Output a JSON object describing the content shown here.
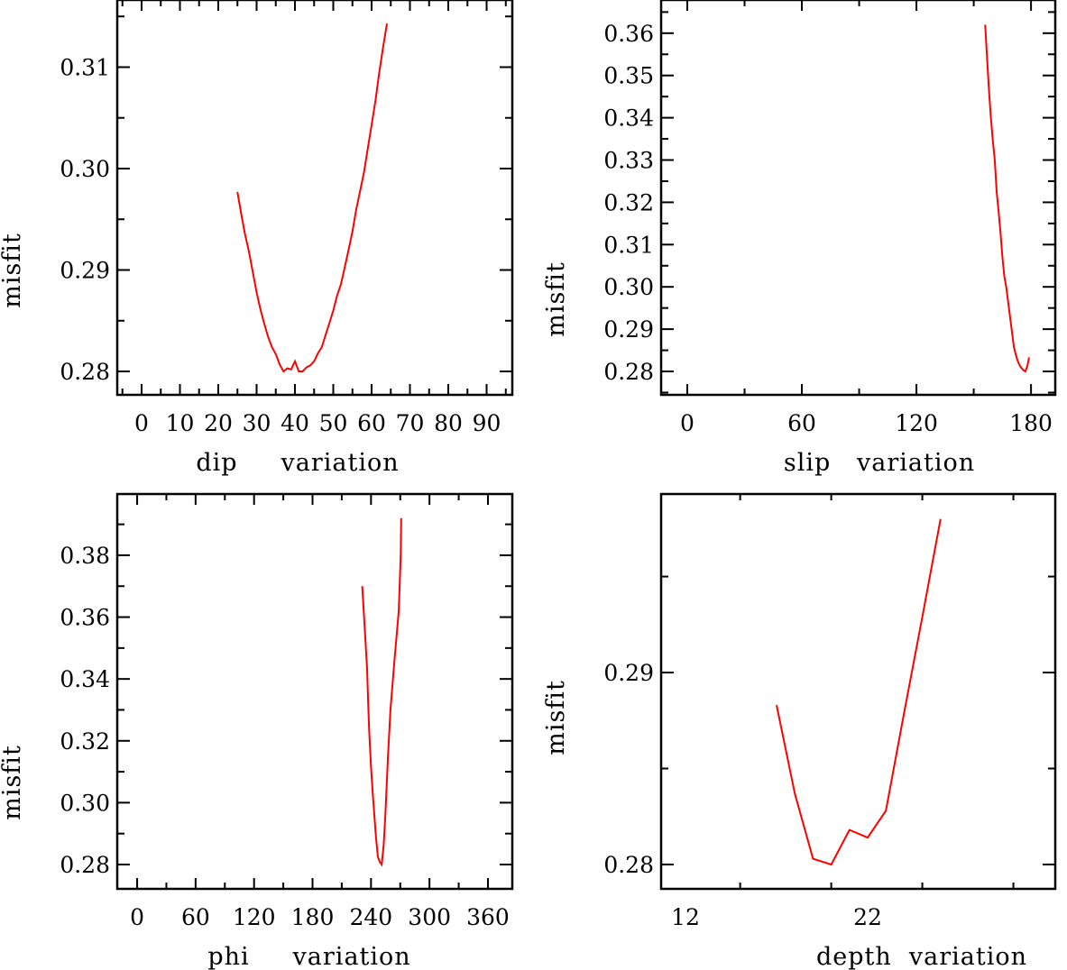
{
  "chart_data": [
    {
      "type": "line",
      "title": "",
      "xlabel": "dip     variation",
      "ylabel": "misfit",
      "xlim": [
        -6.35,
        96.7
      ],
      "ylim": [
        0.27769,
        0.31662
      ],
      "xticks_major": [
        0,
        10,
        20,
        30,
        40,
        50,
        60,
        70,
        80,
        90
      ],
      "xtick_labels": [
        "0",
        "10",
        "20",
        "30",
        "40",
        "50",
        "60",
        "70",
        "80",
        "90"
      ],
      "xticks_minor_step": 5,
      "yticks": [
        0.28,
        0.29,
        0.3,
        0.31
      ],
      "ytick_labels": [
        "0.28",
        "0.29",
        "0.30",
        "0.31"
      ],
      "yticks_minor_step": 0.005,
      "grid": false,
      "series": [
        {
          "name": "dip",
          "color": "#ff0000",
          "x": [
            25,
            26,
            27,
            28,
            29,
            30,
            31,
            32,
            33,
            34,
            35,
            36,
            37,
            38,
            39,
            40,
            41,
            42,
            43,
            44,
            45,
            46,
            47,
            48,
            49,
            50,
            51,
            52,
            53,
            54,
            55,
            56,
            57,
            58,
            59,
            60,
            61,
            62,
            63,
            64
          ],
          "y": [
            0.2977,
            0.2955,
            0.2935,
            0.2918,
            0.2898,
            0.2878,
            0.2861,
            0.2847,
            0.2834,
            0.2824,
            0.2817,
            0.2807,
            0.28,
            0.2803,
            0.2802,
            0.281,
            0.28,
            0.28,
            0.2804,
            0.2806,
            0.281,
            0.2818,
            0.2824,
            0.2836,
            0.2848,
            0.286,
            0.2875,
            0.2886,
            0.2903,
            0.292,
            0.2938,
            0.296,
            0.2978,
            0.2996,
            0.302,
            0.3043,
            0.3067,
            0.3095,
            0.312,
            0.3143
          ]
        }
      ]
    },
    {
      "type": "line",
      "title": "",
      "xlabel": "slip   variation",
      "ylabel": "misfit",
      "xlim": [
        -13.7,
        192.7
      ],
      "ylim": [
        0.27446,
        0.36785
      ],
      "xticks_major": [
        0,
        60,
        120,
        180
      ],
      "xtick_labels": [
        "0",
        "60",
        "120",
        "180"
      ],
      "xticks_minor_step": 30,
      "yticks": [
        0.28,
        0.29,
        0.3,
        0.31,
        0.32,
        0.33,
        0.34,
        0.35,
        0.36
      ],
      "ytick_labels": [
        "0.28",
        "0.29",
        "0.30",
        "0.31",
        "0.32",
        "0.33",
        "0.34",
        "0.35",
        "0.36"
      ],
      "yticks_minor_step": 0.005,
      "grid": false,
      "series": [
        {
          "name": "slip",
          "color": "#ff0000",
          "x": [
            156,
            157,
            158,
            159,
            160,
            161,
            162,
            163,
            164,
            165,
            166,
            167,
            168,
            169,
            170,
            171,
            172,
            173,
            174,
            175,
            176,
            177,
            178,
            179
          ],
          "y": [
            0.362,
            0.354,
            0.3465,
            0.34,
            0.3345,
            0.33,
            0.3225,
            0.318,
            0.313,
            0.307,
            0.3025,
            0.3,
            0.2965,
            0.293,
            0.2895,
            0.2858,
            0.284,
            0.2825,
            0.2815,
            0.2808,
            0.2803,
            0.28,
            0.2812,
            0.2833
          ]
        }
      ]
    },
    {
      "type": "line",
      "title": "",
      "xlabel": "phi     variation",
      "ylabel": "misfit",
      "xlim": [
        -20.4,
        385
      ],
      "ylim": [
        0.27213,
        0.3998
      ],
      "xticks_major": [
        0,
        60,
        120,
        180,
        240,
        300,
        360
      ],
      "xtick_labels": [
        "0",
        "60",
        "120",
        "180",
        "240",
        "300",
        "360"
      ],
      "xticks_minor_step": 30,
      "yticks": [
        0.28,
        0.3,
        0.32,
        0.34,
        0.36,
        0.38
      ],
      "ytick_labels": [
        "0.28",
        "0.30",
        "0.32",
        "0.34",
        "0.36",
        "0.38"
      ],
      "yticks_minor_step": 0.01,
      "grid": false,
      "series": [
        {
          "name": "phi",
          "color": "#ff0000",
          "x": [
            231,
            233,
            236,
            237,
            238,
            240,
            242,
            245,
            247,
            249,
            251,
            253,
            254.7,
            257.4,
            260,
            264,
            268.5,
            270.5,
            271
          ],
          "y": [
            0.37,
            0.3593,
            0.3433,
            0.333,
            0.324,
            0.3118,
            0.302,
            0.2893,
            0.2826,
            0.2808,
            0.28,
            0.2864,
            0.2957,
            0.3146,
            0.33,
            0.3459,
            0.362,
            0.38,
            0.392
          ]
        }
      ]
    },
    {
      "type": "line",
      "title": "",
      "xlabel": "depth  variation",
      "ylabel": "misfit",
      "xlim": [
        10.66,
        32.3
      ],
      "ylim": [
        0.27873,
        0.2993
      ],
      "xticks_major": [
        12,
        22
      ],
      "xtick_labels": [
        "12",
        "22"
      ],
      "xticks_minor_step": 5,
      "yticks": [
        0.28,
        0.29
      ],
      "ytick_labels": [
        "0.28",
        "0.29"
      ],
      "yticks_minor_step": 0.005,
      "grid": false,
      "series": [
        {
          "name": "depth",
          "color": "#ff0000",
          "x": [
            17,
            18,
            19,
            20,
            21,
            22,
            23,
            24,
            25,
            26
          ],
          "y": [
            0.2883,
            0.2837,
            0.2803,
            0.28,
            0.2818,
            0.2814,
            0.2828,
            0.2879,
            0.2929,
            0.298
          ]
        }
      ]
    }
  ]
}
